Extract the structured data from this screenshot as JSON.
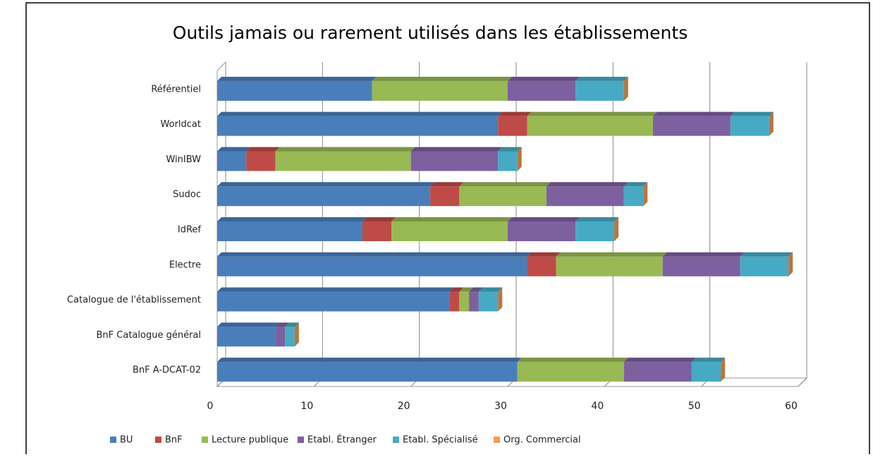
{
  "chart_data": {
    "type": "bar",
    "orientation": "horizontal",
    "stacked": true,
    "title": "Outils jamais ou rarement utilisés dans les établissements",
    "categories": [
      "Référentiel",
      "Worldcat",
      "WinIBW",
      "Sudoc",
      "IdRef",
      "Electre",
      "Catalogue de l'établissement",
      "BnF Catalogue général",
      "BnF A-DCAT-02"
    ],
    "series": [
      {
        "name": "BU",
        "color": "#4a7ebb",
        "values": [
          16,
          29,
          3,
          22,
          15,
          32,
          24,
          6,
          31
        ]
      },
      {
        "name": "BnF",
        "color": "#be4b48",
        "values": [
          0,
          3,
          3,
          3,
          3,
          3,
          1,
          0,
          0
        ]
      },
      {
        "name": "Lecture publique",
        "color": "#98b954",
        "values": [
          14,
          13,
          14,
          9,
          12,
          11,
          1,
          0,
          11
        ]
      },
      {
        "name": "Etabl. Étranger",
        "color": "#7d60a0",
        "values": [
          7,
          8,
          9,
          8,
          7,
          8,
          1,
          1,
          7
        ]
      },
      {
        "name": "Etabl. Spécialisé",
        "color": "#46aac5",
        "values": [
          5,
          4,
          2,
          2,
          4,
          5,
          2,
          1,
          3
        ]
      },
      {
        "name": "Org. Commercial",
        "color": "#f59d56",
        "values": [
          0,
          0,
          0,
          0,
          0,
          0,
          0,
          0,
          0
        ]
      }
    ],
    "xlim": [
      0,
      60
    ],
    "xticks": [
      0,
      10,
      20,
      30,
      40,
      50,
      60
    ],
    "grid": true,
    "legend": "bottom"
  }
}
